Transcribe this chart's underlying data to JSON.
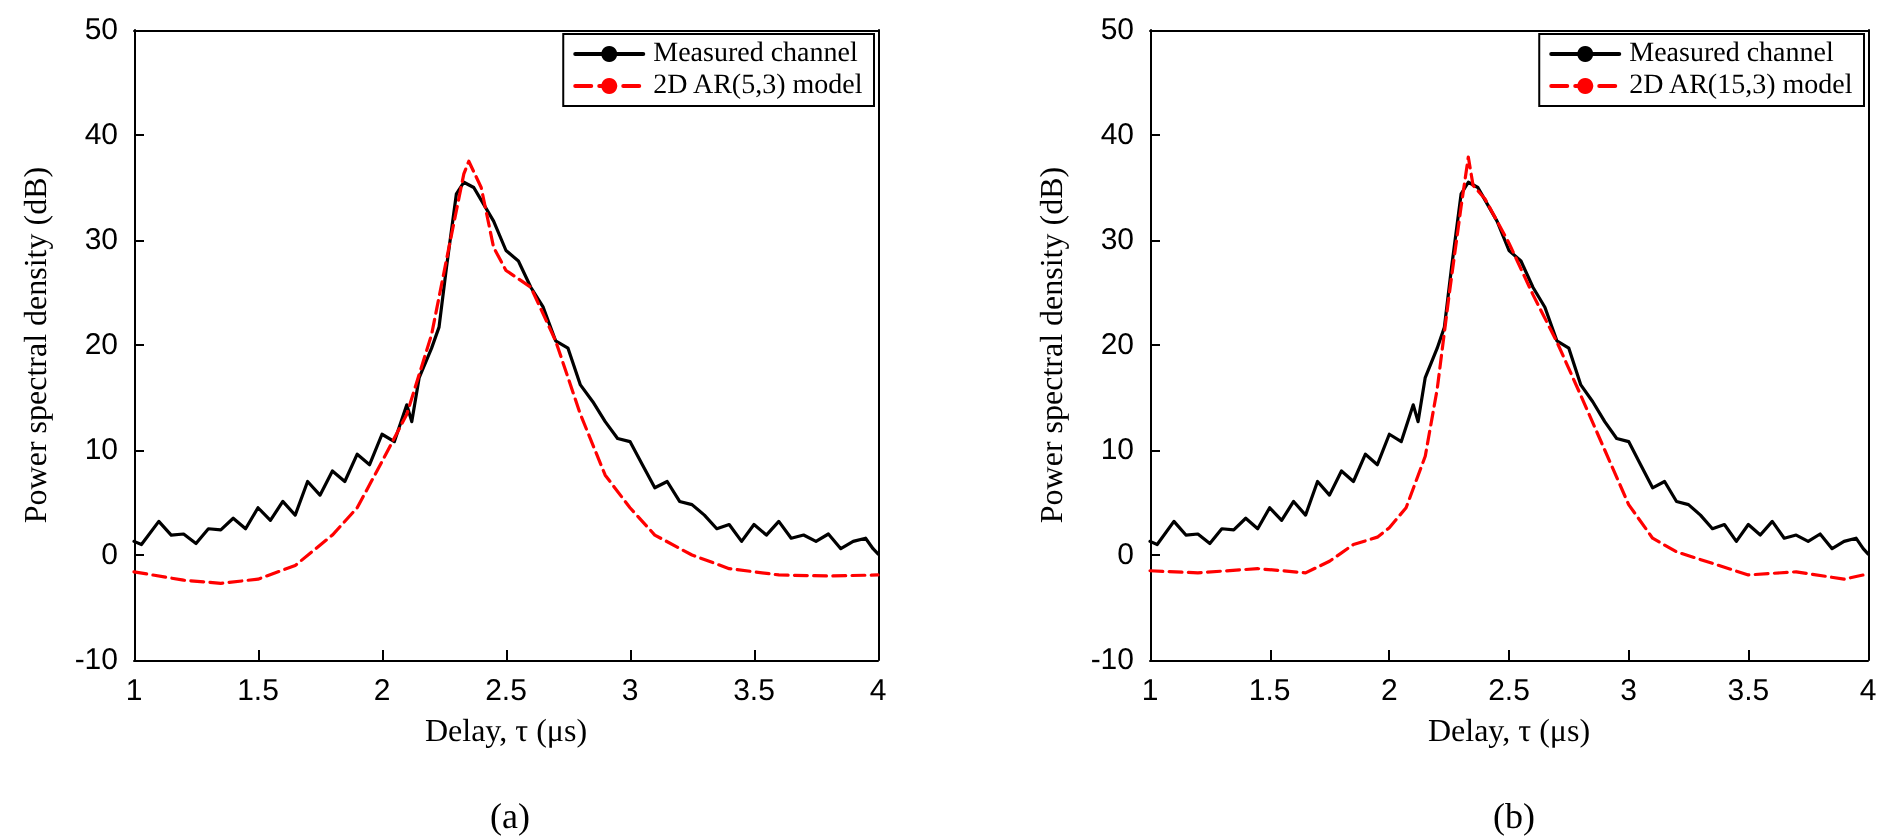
{
  "chart_data": [
    {
      "type": "line",
      "xlabel": "Delay, τ (μs)",
      "ylabel": "Power spectral density (dB)",
      "annotations": [
        "(a)"
      ],
      "xlim": [
        1,
        4
      ],
      "ylim": [
        -10,
        50
      ],
      "xticks": [
        1,
        1.5,
        2,
        2.5,
        3,
        3.5,
        4
      ],
      "yticks": [
        -10,
        0,
        10,
        20,
        30,
        40,
        50
      ],
      "grid": false,
      "legend": "top right",
      "marker": "none",
      "series": [
        {
          "name": "Measured channel",
          "color": "#000000",
          "line_style": "solid",
          "x": [
            1.0,
            1.03,
            1.1,
            1.15,
            1.2,
            1.25,
            1.3,
            1.35,
            1.4,
            1.45,
            1.5,
            1.55,
            1.6,
            1.65,
            1.7,
            1.75,
            1.8,
            1.85,
            1.9,
            1.95,
            2.0,
            2.05,
            2.1,
            2.12,
            2.15,
            2.2,
            2.23,
            2.26,
            2.3,
            2.33,
            2.37,
            2.4,
            2.45,
            2.5,
            2.55,
            2.6,
            2.65,
            2.7,
            2.75,
            2.8,
            2.85,
            2.9,
            2.95,
            3.0,
            3.05,
            3.1,
            3.15,
            3.2,
            3.25,
            3.3,
            3.35,
            3.4,
            3.45,
            3.5,
            3.55,
            3.6,
            3.65,
            3.7,
            3.75,
            3.8,
            3.85,
            3.9,
            3.95,
            3.98,
            4.0
          ],
          "values": [
            1.3,
            1.0,
            3.2,
            1.9,
            2.0,
            1.1,
            2.5,
            2.4,
            3.5,
            2.5,
            4.5,
            3.3,
            5.1,
            3.8,
            7.0,
            5.7,
            8.0,
            7.0,
            9.6,
            8.6,
            11.5,
            10.8,
            14.3,
            12.7,
            16.9,
            19.7,
            21.7,
            27.4,
            34.4,
            35.5,
            35.0,
            33.8,
            31.8,
            29.0,
            28.0,
            25.5,
            23.6,
            20.4,
            19.7,
            16.2,
            14.6,
            12.7,
            11.1,
            10.8,
            8.6,
            6.4,
            7.0,
            5.1,
            4.8,
            3.8,
            2.5,
            2.9,
            1.3,
            2.9,
            1.9,
            3.2,
            1.6,
            1.9,
            1.3,
            2.0,
            0.6,
            1.3,
            1.6,
            0.6,
            0.1
          ]
        },
        {
          "name": "2D AR(5,3) model",
          "color": "#ff0000",
          "line_style": "dashed",
          "x": [
            1.0,
            1.2,
            1.35,
            1.5,
            1.65,
            1.8,
            1.9,
            2.0,
            2.1,
            2.2,
            2.27,
            2.33,
            2.35,
            2.4,
            2.45,
            2.5,
            2.6,
            2.7,
            2.8,
            2.9,
            3.0,
            3.1,
            3.25,
            3.4,
            3.6,
            3.8,
            4.0
          ],
          "values": [
            -1.6,
            -2.4,
            -2.7,
            -2.3,
            -1.0,
            1.9,
            4.5,
            8.9,
            13.4,
            21.0,
            29.3,
            36.3,
            37.5,
            35.0,
            29.3,
            27.1,
            25.5,
            20.4,
            13.4,
            7.6,
            4.5,
            1.9,
            0.0,
            -1.3,
            -1.9,
            -2.0,
            -1.9
          ]
        }
      ]
    },
    {
      "type": "line",
      "xlabel": "Delay, τ (μs)",
      "ylabel": "Power spectral density (dB)",
      "annotations": [
        "(b)"
      ],
      "xlim": [
        1,
        4
      ],
      "ylim": [
        -10,
        50
      ],
      "xticks": [
        1,
        1.5,
        2,
        2.5,
        3,
        3.5,
        4
      ],
      "yticks": [
        -10,
        0,
        10,
        20,
        30,
        40,
        50
      ],
      "grid": false,
      "legend": "top right",
      "marker": "none",
      "series": [
        {
          "name": "Measured channel",
          "color": "#000000",
          "line_style": "solid",
          "x": [
            1.0,
            1.03,
            1.1,
            1.15,
            1.2,
            1.25,
            1.3,
            1.35,
            1.4,
            1.45,
            1.5,
            1.55,
            1.6,
            1.65,
            1.7,
            1.75,
            1.8,
            1.85,
            1.9,
            1.95,
            2.0,
            2.05,
            2.1,
            2.12,
            2.15,
            2.2,
            2.23,
            2.26,
            2.3,
            2.33,
            2.37,
            2.4,
            2.45,
            2.5,
            2.55,
            2.6,
            2.65,
            2.7,
            2.75,
            2.8,
            2.85,
            2.9,
            2.95,
            3.0,
            3.05,
            3.1,
            3.15,
            3.2,
            3.25,
            3.3,
            3.35,
            3.4,
            3.45,
            3.5,
            3.55,
            3.6,
            3.65,
            3.7,
            3.75,
            3.8,
            3.85,
            3.9,
            3.95,
            3.98,
            4.0
          ],
          "values": [
            1.3,
            1.0,
            3.2,
            1.9,
            2.0,
            1.1,
            2.5,
            2.4,
            3.5,
            2.5,
            4.5,
            3.3,
            5.1,
            3.8,
            7.0,
            5.7,
            8.0,
            7.0,
            9.6,
            8.6,
            11.5,
            10.8,
            14.3,
            12.7,
            16.9,
            19.7,
            21.7,
            27.4,
            34.4,
            35.5,
            35.0,
            33.8,
            31.8,
            29.0,
            28.0,
            25.5,
            23.6,
            20.4,
            19.7,
            16.2,
            14.6,
            12.7,
            11.1,
            10.8,
            8.6,
            6.4,
            7.0,
            5.1,
            4.8,
            3.8,
            2.5,
            2.9,
            1.3,
            2.9,
            1.9,
            3.2,
            1.6,
            1.9,
            1.3,
            2.0,
            0.6,
            1.3,
            1.6,
            0.6,
            0.1
          ]
        },
        {
          "name": "2D AR(15,3) model",
          "color": "#ff0000",
          "line_style": "dashed",
          "x": [
            1.0,
            1.2,
            1.45,
            1.65,
            1.75,
            1.85,
            1.95,
            2.0,
            2.07,
            2.15,
            2.2,
            2.25,
            2.3,
            2.33,
            2.35,
            2.4,
            2.5,
            2.6,
            2.7,
            2.8,
            2.9,
            3.0,
            3.1,
            3.2,
            3.35,
            3.5,
            3.7,
            3.9,
            4.0
          ],
          "values": [
            -1.5,
            -1.7,
            -1.3,
            -1.7,
            -0.6,
            1.0,
            1.7,
            2.6,
            4.5,
            9.4,
            15.8,
            24.8,
            33.2,
            37.9,
            35.2,
            33.9,
            29.7,
            24.8,
            20.3,
            15.2,
            10.0,
            4.8,
            1.6,
            0.3,
            -0.8,
            -1.9,
            -1.6,
            -2.3,
            -1.8
          ]
        }
      ]
    }
  ]
}
